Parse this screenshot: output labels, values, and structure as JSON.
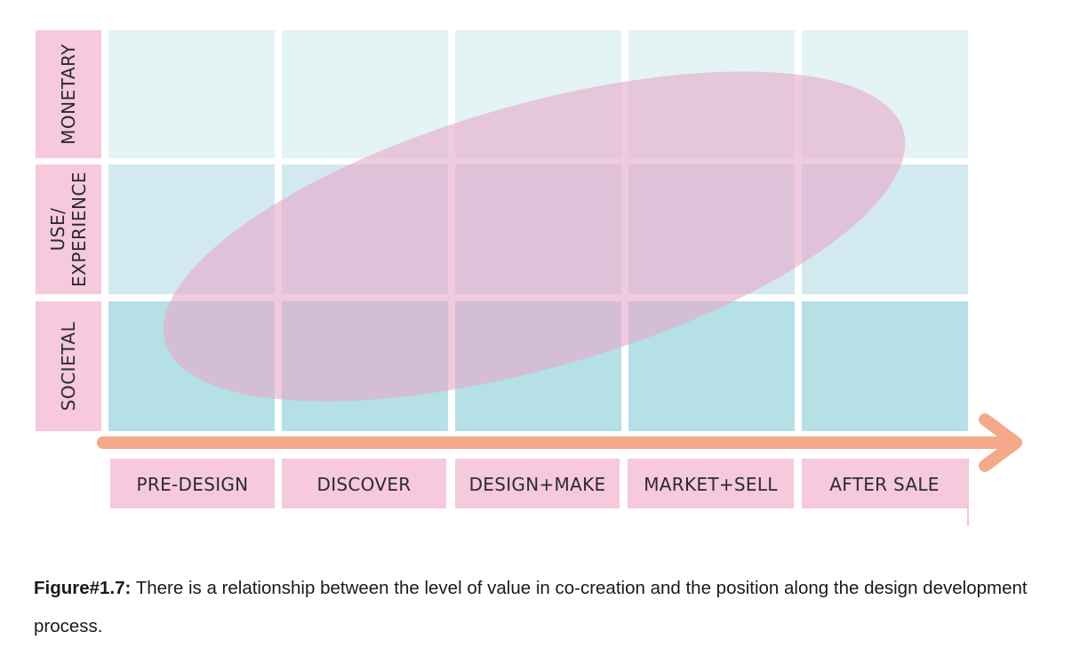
{
  "diagram": {
    "row_labels": [
      {
        "lines": [
          "MONETARY"
        ]
      },
      {
        "lines": [
          "USE/",
          "EXPERIENCE"
        ]
      },
      {
        "lines": [
          "SOCIETAL"
        ]
      }
    ],
    "column_labels": [
      "PRE-DESIGN",
      "DISCOVER",
      "DESIGN+MAKE",
      "MARKET+SELL",
      "AFTER SALE"
    ],
    "colors": {
      "label_box": "#f6c9dd",
      "row_fills": [
        "#e4f3f3",
        "#d2eaef",
        "#b4e0e6"
      ],
      "ellipse": "#e7a9cc",
      "arrow": "#f4a98a"
    }
  },
  "caption": {
    "label": "Figure#1.7:",
    "text": " There is a relationship between the level of value in co-creation and the position along the design development process."
  }
}
